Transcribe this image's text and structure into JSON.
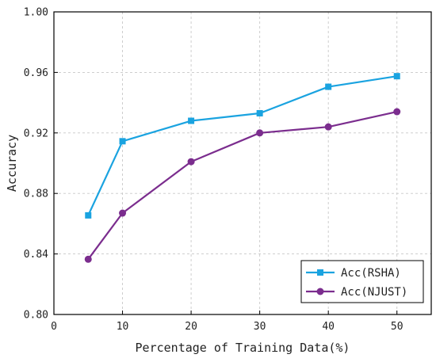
{
  "chart_data": {
    "type": "line",
    "xlabel": "Percentage of Training Data(%)",
    "ylabel": "Accuracy",
    "xlim": [
      0,
      55
    ],
    "ylim": [
      0.8,
      1.0
    ],
    "x_ticks": [
      0,
      10,
      20,
      30,
      40,
      50
    ],
    "y_ticks": [
      0.8,
      0.84,
      0.88,
      0.92,
      0.96,
      1.0
    ],
    "x_tick_labels": [
      "0",
      "10",
      "20",
      "30",
      "40",
      "50"
    ],
    "y_tick_labels": [
      "0.80",
      "0.84",
      "0.88",
      "0.92",
      "0.96",
      "1.00"
    ],
    "grid": true,
    "legend_position": "bottom-right",
    "x": [
      5,
      10,
      20,
      30,
      40,
      50
    ],
    "series": [
      {
        "name": "Acc(RSHA)",
        "values": [
          0.8655,
          0.9145,
          0.928,
          0.933,
          0.9505,
          0.9575
        ],
        "color": "#1aa3e0",
        "marker": "square"
      },
      {
        "name": "Acc(NJUST)",
        "values": [
          0.8365,
          0.867,
          0.901,
          0.92,
          0.924,
          0.934
        ],
        "color": "#7b2d8e",
        "marker": "circle"
      }
    ]
  }
}
